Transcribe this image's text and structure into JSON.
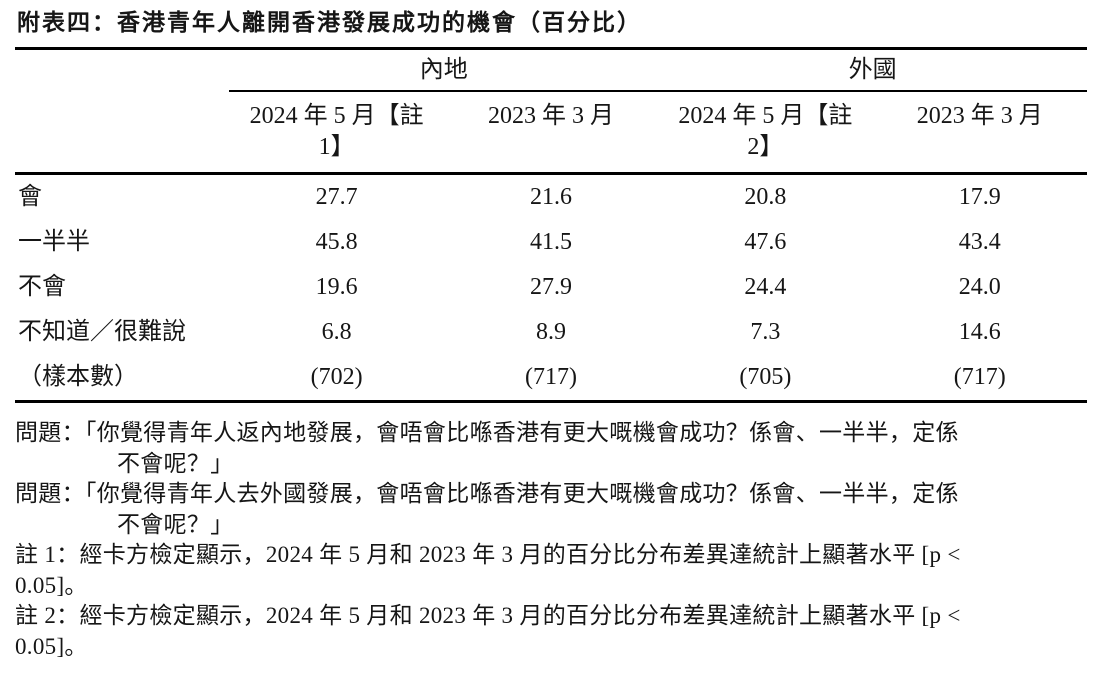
{
  "page": {
    "title": "附表四：香港青年人離開香港發展成功的機會（百分比）"
  },
  "table": {
    "group_headers": {
      "mainland": "內地",
      "overseas": "外國"
    },
    "column_headers": [
      {
        "line1": "2024 年 5 月【註",
        "line2": "1】"
      },
      {
        "line1": "2023 年 3 月",
        "line2": ""
      },
      {
        "line1": "2024 年 5 月【註",
        "line2": "2】"
      },
      {
        "line1": "2023 年 3 月",
        "line2": ""
      }
    ],
    "rows": [
      {
        "label": "會",
        "values": [
          "27.7",
          "21.6",
          "20.8",
          "17.9"
        ]
      },
      {
        "label": "一半半",
        "values": [
          "45.8",
          "41.5",
          "47.6",
          "43.4"
        ]
      },
      {
        "label": "不會",
        "values": [
          "19.6",
          "27.9",
          "24.4",
          "24.0"
        ]
      },
      {
        "label": "不知道／很難說",
        "values": [
          "6.8",
          "8.9",
          "7.3",
          "14.6"
        ]
      },
      {
        "label": "（樣本數）",
        "values": [
          "(702)",
          "(717)",
          "(705)",
          "(717)"
        ]
      }
    ]
  },
  "footnotes": [
    {
      "line1": "問題：「你覺得青年人返內地發展，會唔會比喺香港有更大嘅機會成功？係會、一半半，定係",
      "line2": "不會呢？」"
    },
    {
      "line1": "問題：「你覺得青年人去外國發展，會唔會比喺香港有更大嘅機會成功？係會、一半半，定係",
      "line2": "不會呢？」"
    },
    {
      "line1": "註 1：經卡方檢定顯示，2024 年 5 月和 2023 年 3 月的百分比分布差異達統計上顯著水平 [p <",
      "line2": "0.05]。"
    },
    {
      "line1": "註 2：經卡方檢定顯示，2024 年 5 月和 2023 年 3 月的百分比分布差異達統計上顯著水平 [p <",
      "line2": "0.05]。"
    }
  ]
}
